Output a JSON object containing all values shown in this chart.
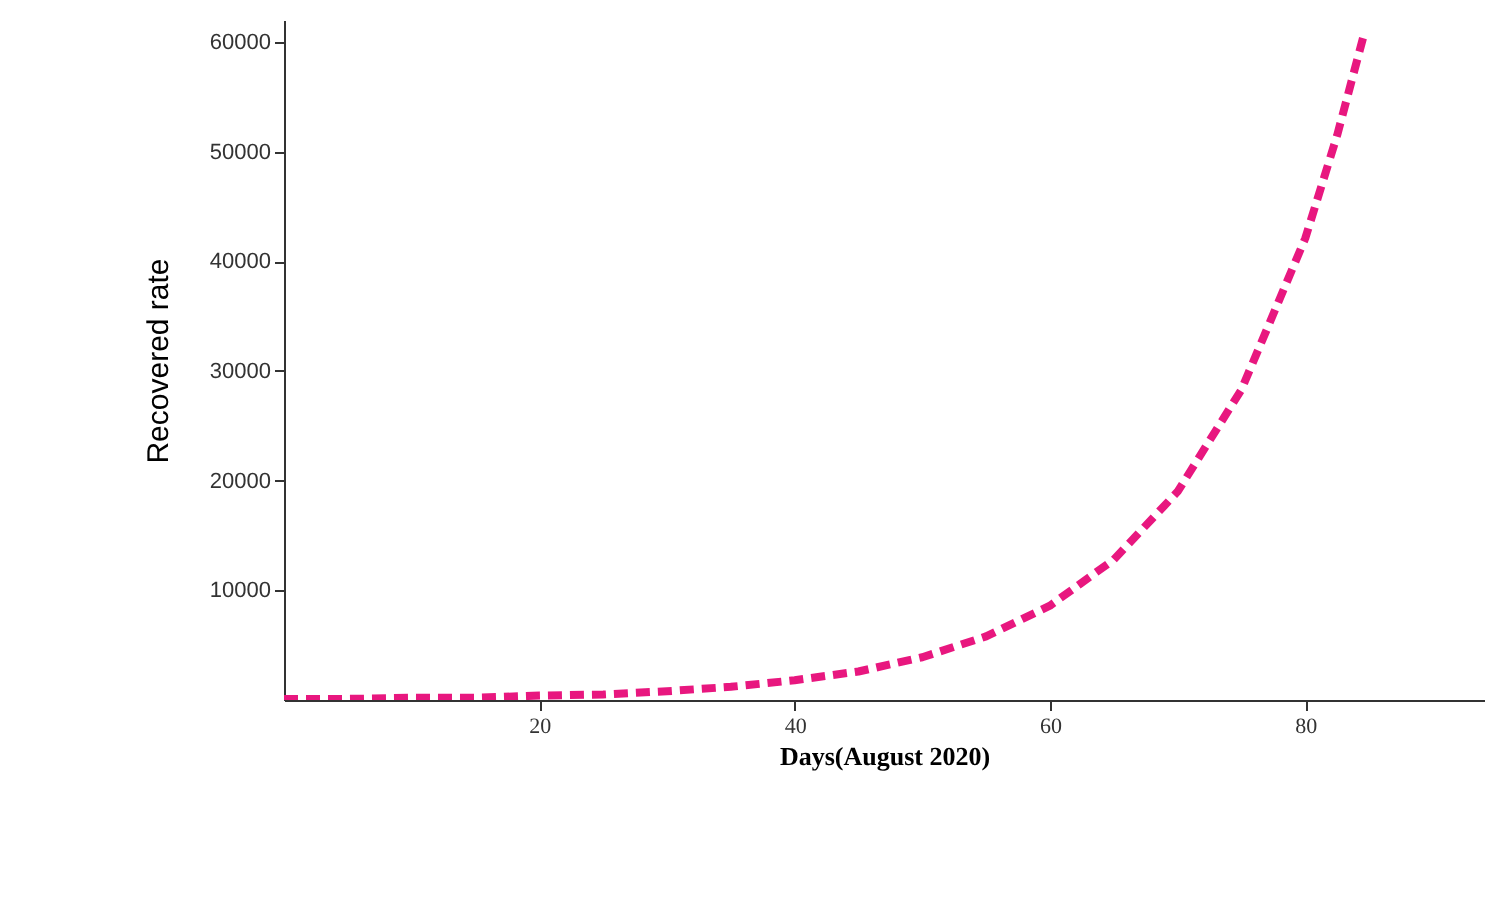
{
  "chart_data": {
    "type": "line",
    "xlabel": "Days(August 2020)",
    "ylabel": "Recovered rate",
    "x": [
      0,
      5,
      10,
      15,
      20,
      25,
      30,
      35,
      40,
      45,
      50,
      55,
      60,
      65,
      70,
      75,
      80,
      82.5,
      84.6
    ],
    "series": [
      {
        "color": "#e8177f",
        "values": [
          100,
          100,
          200,
          200,
          400,
          500,
          800,
          1200,
          1800,
          2600,
          3900,
          5800,
          8600,
          12800,
          19000,
          28300,
          42100,
          51500,
          60700
        ]
      }
    ],
    "xlim": [
      0,
      94
    ],
    "ylim": [
      0,
      62000
    ],
    "xticks": [
      20,
      40,
      60,
      80
    ],
    "yticks": [
      10000,
      20000,
      30000,
      40000,
      50000,
      60000
    ],
    "grid": false,
    "marker": "none",
    "line_style": "dashed"
  }
}
